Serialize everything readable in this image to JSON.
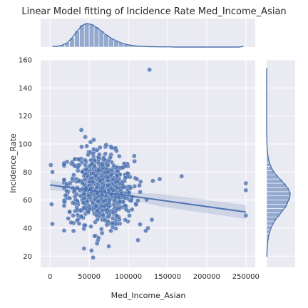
{
  "chart_data": {
    "type": "scatter",
    "title": "Linear Model fitting of Incidence Rate Med_Income_Asian",
    "xlabel": "Med_Income_Asian",
    "ylabel": "Incidence_Rate",
    "xlim": [
      -12000,
      262000
    ],
    "ylim": [
      12,
      160
    ],
    "xticks": [
      0,
      50000,
      100000,
      150000,
      200000,
      250000
    ],
    "yticks": [
      20,
      40,
      60,
      80,
      100,
      120,
      140,
      160
    ],
    "grid": true,
    "colors": {
      "background": "#eaeaf2",
      "points": "#4c72b0",
      "line": "#4c72b0",
      "band": "#4c72b0"
    },
    "regression": {
      "x": [
        0,
        250000
      ],
      "y": [
        70.8,
        51.5
      ],
      "ci_low": [
        67.0,
        46.5
      ],
      "ci_high": [
        74.6,
        56.5
      ]
    },
    "outliers": [
      {
        "x": 127000,
        "y": 153
      },
      {
        "x": 250000,
        "y": 72
      },
      {
        "x": 250000,
        "y": 67
      },
      {
        "x": 250000,
        "y": 49
      },
      {
        "x": 168000,
        "y": 77
      },
      {
        "x": 140000,
        "y": 75
      },
      {
        "x": 3000,
        "y": 43
      },
      {
        "x": 2000,
        "y": 57
      },
      {
        "x": 3000,
        "y": 80
      },
      {
        "x": 1000,
        "y": 85
      },
      {
        "x": 40000,
        "y": 110
      },
      {
        "x": 45000,
        "y": 105
      },
      {
        "x": 60000,
        "y": 29
      },
      {
        "x": 62000,
        "y": 33
      },
      {
        "x": 75000,
        "y": 27
      },
      {
        "x": 55000,
        "y": 19
      },
      {
        "x": 27000,
        "y": 44
      },
      {
        "x": 30000,
        "y": 38
      },
      {
        "x": 125000,
        "y": 40
      },
      {
        "x": 130000,
        "y": 46
      }
    ],
    "cluster": {
      "n": 760,
      "x_center": 65000,
      "x_spread": 21000,
      "y_center": 68,
      "y_spread": 13,
      "x_min": 18000,
      "x_max": 140000
    },
    "marginal_x": {
      "bin_edges_start": 0,
      "bin_width": 6250,
      "counts": [
        3,
        4,
        10,
        22,
        47,
        80,
        110,
        120,
        115,
        100,
        82,
        62,
        45,
        32,
        22,
        14,
        9,
        6,
        4,
        3,
        2,
        2,
        1,
        1,
        1,
        0,
        0,
        0,
        0,
        0,
        0,
        0,
        0,
        0,
        0,
        0,
        0,
        0,
        0,
        3
      ]
    },
    "marginal_y": {
      "bin_edges_start": 18,
      "bin_width": 3,
      "counts": [
        1,
        1,
        2,
        3,
        5,
        8,
        12,
        18,
        26,
        36,
        50,
        62,
        75,
        82,
        90,
        92,
        86,
        74,
        60,
        44,
        30,
        20,
        13,
        8,
        5,
        3,
        2,
        1,
        1,
        0,
        0,
        0,
        0,
        0,
        0,
        0,
        0,
        0,
        0,
        0,
        0,
        0,
        0,
        0,
        0,
        1
      ]
    }
  }
}
